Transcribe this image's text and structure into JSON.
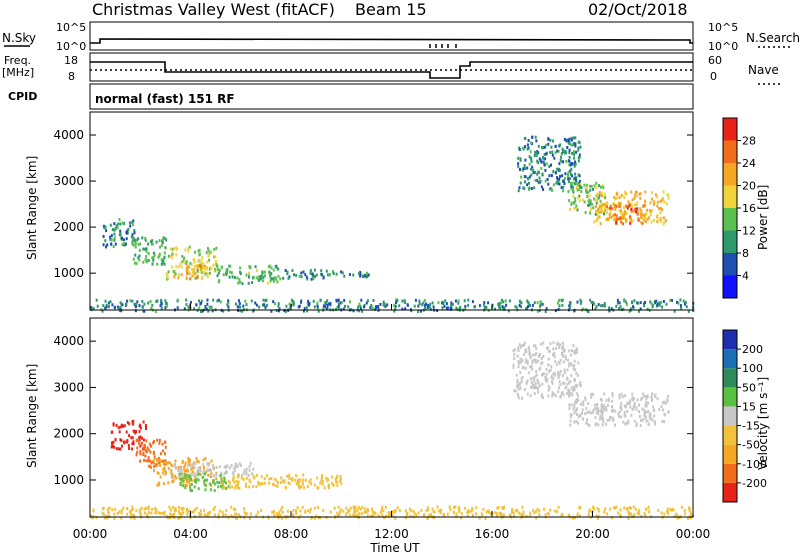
{
  "header": {
    "title": "Christmas Valley West (fitACF)",
    "beam": "Beam 15",
    "date": "02/Oct/2018"
  },
  "status_panels": {
    "nsky_label": "N.Sky",
    "nsky_ticks": [
      "10^5",
      "10^0"
    ],
    "nsearch_label": "N.Search",
    "nsearch_ticks": [
      "10^5",
      "10^0"
    ],
    "freq_label_1": "Freq.",
    "freq_label_2": "[MHz]",
    "freq_ticks": [
      "18",
      "8"
    ],
    "nave_label": "Nave",
    "nave_ticks": [
      "60",
      "0"
    ],
    "cpid_label": "CPID",
    "cpid_value": "normal (fast) 151 RF"
  },
  "x_axis": {
    "label": "Time UT",
    "ticks": [
      "00:00",
      "04:00",
      "08:00",
      "12:00",
      "16:00",
      "20:00",
      "00:00"
    ]
  },
  "chart_data": [
    {
      "type": "heatmap",
      "name": "power",
      "ylabel": "Slant Range [km]",
      "xlabel": "Time UT",
      "x_range_hours": [
        0,
        24
      ],
      "ylim": [
        200,
        4500
      ],
      "y_ticks": [
        1000,
        2000,
        3000,
        4000
      ],
      "colorbar": {
        "label": "Power [dB]",
        "ticks": [
          "4",
          "8",
          "12",
          "16",
          "20",
          "24",
          "28"
        ],
        "range": [
          0,
          32
        ],
        "colors": [
          "#1010ff",
          "#1d4fb0",
          "#2e9a6a",
          "#5cc050",
          "#f1d43a",
          "#f5a623",
          "#f26d1c",
          "#e8231a"
        ]
      },
      "regions": [
        {
          "t": [
            0.5,
            1.8
          ],
          "r": [
            1600,
            2200
          ],
          "v": 9
        },
        {
          "t": [
            1.6,
            3.0
          ],
          "r": [
            1200,
            1800
          ],
          "v": 12
        },
        {
          "t": [
            3.0,
            5.0
          ],
          "r": [
            900,
            1600
          ],
          "v": 17
        },
        {
          "t": [
            3.8,
            4.6
          ],
          "r": [
            900,
            1200
          ],
          "v": 21
        },
        {
          "t": [
            5.0,
            7.5
          ],
          "r": [
            800,
            1200
          ],
          "v": 13
        },
        {
          "t": [
            7.5,
            10.0
          ],
          "r": [
            900,
            1100
          ],
          "v": 9
        },
        {
          "t": [
            10.0,
            11.2
          ],
          "r": [
            950,
            1050
          ],
          "v": 10
        },
        {
          "t": [
            17.0,
            19.5
          ],
          "r": [
            2800,
            4000
          ],
          "v": 9
        },
        {
          "t": [
            19.0,
            20.5
          ],
          "r": [
            2300,
            3000
          ],
          "v": 14
        },
        {
          "t": [
            20.0,
            23.0
          ],
          "r": [
            2100,
            2800
          ],
          "v": 20
        },
        {
          "t": [
            20.5,
            22.0
          ],
          "r": [
            2100,
            2500
          ],
          "v": 25
        },
        {
          "t": [
            0.0,
            24.0
          ],
          "r": [
            200,
            450
          ],
          "v": 9
        }
      ]
    },
    {
      "type": "heatmap",
      "name": "velocity",
      "ylabel": "Slant Range [km]",
      "xlabel": "Time UT",
      "x_range_hours": [
        0,
        24
      ],
      "ylim": [
        200,
        4500
      ],
      "y_ticks": [
        1000,
        2000,
        3000,
        4000
      ],
      "colorbar": {
        "label": "Velocity [m s⁻¹]",
        "ticks": [
          "200",
          "100",
          "50",
          "15",
          "-15",
          "-50",
          "-100",
          "-200"
        ],
        "colors": [
          "#1d2fb0",
          "#1d6fb5",
          "#2e8a5a",
          "#59c040",
          "#c8c8c8",
          "#f1c23a",
          "#f5a623",
          "#f26d1c",
          "#e8231a"
        ]
      },
      "regions": [
        {
          "t": [
            0.8,
            2.2
          ],
          "r": [
            1700,
            2300
          ],
          "c": "#e8231a"
        },
        {
          "t": [
            1.8,
            3.0
          ],
          "r": [
            1300,
            1900
          ],
          "c": "#f26d1c"
        },
        {
          "t": [
            2.5,
            5.0
          ],
          "r": [
            900,
            1500
          ],
          "c": "#f5a623"
        },
        {
          "t": [
            3.5,
            5.5
          ],
          "r": [
            800,
            1200
          ],
          "c": "#59c040"
        },
        {
          "t": [
            3.2,
            6.5
          ],
          "r": [
            1100,
            1400
          ],
          "c": "#c8c8c8"
        },
        {
          "t": [
            5.0,
            10.0
          ],
          "r": [
            850,
            1150
          ],
          "c": "#f1c23a"
        },
        {
          "t": [
            16.8,
            19.5
          ],
          "r": [
            2800,
            4000
          ],
          "c": "#c8c8c8"
        },
        {
          "t": [
            19.0,
            23.0
          ],
          "r": [
            2200,
            2900
          ],
          "c": "#c8c8c8"
        },
        {
          "t": [
            0.0,
            24.0
          ],
          "r": [
            200,
            450
          ],
          "c": "#f1c23a"
        }
      ]
    }
  ]
}
